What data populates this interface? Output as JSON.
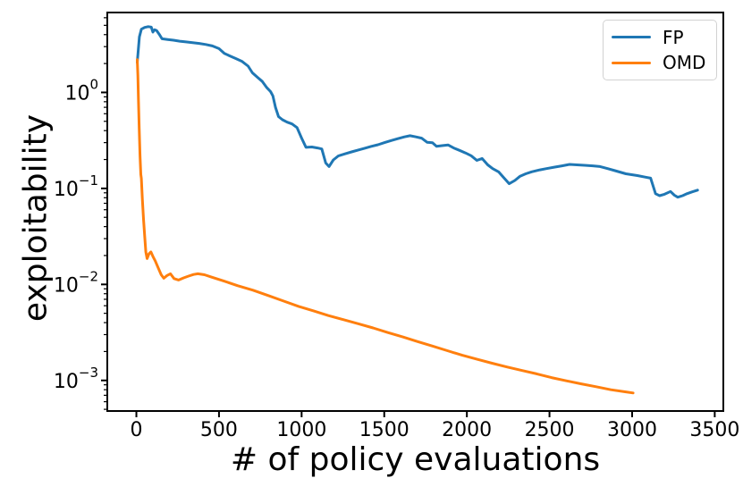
{
  "figure": {
    "background": "#ffffff",
    "spine_color": "#000000",
    "tick_color": "#000000",
    "text_color": "#000000"
  },
  "chart_data": {
    "type": "line",
    "title": "",
    "xlabel": "# of policy evaluations",
    "ylabel": "exploitability",
    "x_scale": "linear",
    "y_scale": "log",
    "xlim": [
      -176,
      3552
    ],
    "ylim": [
      0.00048,
      6.8
    ],
    "grid": false,
    "x_ticks": [
      {
        "value": 0,
        "label": "0"
      },
      {
        "value": 500,
        "label": "500"
      },
      {
        "value": 1000,
        "label": "1000"
      },
      {
        "value": 1500,
        "label": "1500"
      },
      {
        "value": 2000,
        "label": "2000"
      },
      {
        "value": 2500,
        "label": "2500"
      },
      {
        "value": 3000,
        "label": "3000"
      },
      {
        "value": 3500,
        "label": "3500"
      }
    ],
    "y_ticks": [
      {
        "value": 1,
        "base": "10",
        "exp": "0"
      },
      {
        "value": 0.1,
        "base": "10",
        "exp": "−1"
      },
      {
        "value": 0.01,
        "base": "10",
        "exp": "−2"
      },
      {
        "value": 0.001,
        "base": "10",
        "exp": "−3"
      }
    ],
    "legend": {
      "position": "upper-right",
      "entries": [
        {
          "label": "FP",
          "color": "#1f77b4"
        },
        {
          "label": "OMD",
          "color": "#ff7f0e"
        }
      ]
    },
    "series": [
      {
        "name": "FP",
        "color": "#1f77b4",
        "points": [
          [
            5,
            2.05
          ],
          [
            18,
            3.8
          ],
          [
            30,
            4.55
          ],
          [
            50,
            4.75
          ],
          [
            72,
            4.85
          ],
          [
            90,
            4.78
          ],
          [
            100,
            4.25
          ],
          [
            110,
            4.5
          ],
          [
            122,
            4.42
          ],
          [
            138,
            4.05
          ],
          [
            155,
            3.62
          ],
          [
            190,
            3.56
          ],
          [
            225,
            3.5
          ],
          [
            262,
            3.42
          ],
          [
            300,
            3.36
          ],
          [
            340,
            3.3
          ],
          [
            380,
            3.24
          ],
          [
            420,
            3.16
          ],
          [
            460,
            3.05
          ],
          [
            500,
            2.86
          ],
          [
            532,
            2.55
          ],
          [
            566,
            2.4
          ],
          [
            600,
            2.26
          ],
          [
            640,
            2.1
          ],
          [
            676,
            1.88
          ],
          [
            702,
            1.6
          ],
          [
            732,
            1.44
          ],
          [
            762,
            1.3
          ],
          [
            790,
            1.12
          ],
          [
            812,
            1.02
          ],
          [
            826,
            0.92
          ],
          [
            842,
            0.7
          ],
          [
            860,
            0.56
          ],
          [
            884,
            0.52
          ],
          [
            912,
            0.49
          ],
          [
            942,
            0.47
          ],
          [
            972,
            0.43
          ],
          [
            1000,
            0.335
          ],
          [
            1026,
            0.268
          ],
          [
            1062,
            0.27
          ],
          [
            1096,
            0.264
          ],
          [
            1122,
            0.258
          ],
          [
            1146,
            0.184
          ],
          [
            1166,
            0.169
          ],
          [
            1192,
            0.198
          ],
          [
            1222,
            0.218
          ],
          [
            1262,
            0.229
          ],
          [
            1302,
            0.24
          ],
          [
            1342,
            0.251
          ],
          [
            1382,
            0.262
          ],
          [
            1422,
            0.274
          ],
          [
            1462,
            0.285
          ],
          [
            1502,
            0.3
          ],
          [
            1542,
            0.315
          ],
          [
            1582,
            0.33
          ],
          [
            1622,
            0.344
          ],
          [
            1656,
            0.354
          ],
          [
            1692,
            0.344
          ],
          [
            1726,
            0.334
          ],
          [
            1760,
            0.302
          ],
          [
            1792,
            0.299
          ],
          [
            1816,
            0.275
          ],
          [
            1850,
            0.279
          ],
          [
            1886,
            0.284
          ],
          [
            1920,
            0.264
          ],
          [
            1956,
            0.249
          ],
          [
            1992,
            0.234
          ],
          [
            2026,
            0.219
          ],
          [
            2060,
            0.196
          ],
          [
            2092,
            0.205
          ],
          [
            2126,
            0.176
          ],
          [
            2156,
            0.161
          ],
          [
            2192,
            0.149
          ],
          [
            2226,
            0.128
          ],
          [
            2256,
            0.112
          ],
          [
            2290,
            0.121
          ],
          [
            2322,
            0.134
          ],
          [
            2356,
            0.142
          ],
          [
            2392,
            0.149
          ],
          [
            2442,
            0.156
          ],
          [
            2482,
            0.161
          ],
          [
            2532,
            0.167
          ],
          [
            2576,
            0.172
          ],
          [
            2622,
            0.178
          ],
          [
            2666,
            0.176
          ],
          [
            2712,
            0.174
          ],
          [
            2762,
            0.172
          ],
          [
            2806,
            0.169
          ],
          [
            2852,
            0.161
          ],
          [
            2896,
            0.153
          ],
          [
            2962,
            0.142
          ],
          [
            3032,
            0.136
          ],
          [
            3082,
            0.131
          ],
          [
            3112,
            0.128
          ],
          [
            3142,
            0.088
          ],
          [
            3166,
            0.084
          ],
          [
            3196,
            0.087
          ],
          [
            3232,
            0.093
          ],
          [
            3256,
            0.085
          ],
          [
            3276,
            0.081
          ],
          [
            3306,
            0.084
          ],
          [
            3332,
            0.088
          ],
          [
            3362,
            0.092
          ],
          [
            3396,
            0.096
          ]
        ]
      },
      {
        "name": "OMD",
        "color": "#ff7f0e",
        "points": [
          [
            5,
            2.2
          ],
          [
            9,
            1.5
          ],
          [
            13,
            0.8
          ],
          [
            17,
            0.42
          ],
          [
            22,
            0.22
          ],
          [
            27,
            0.14
          ],
          [
            30,
            0.127
          ],
          [
            36,
            0.078
          ],
          [
            43,
            0.048
          ],
          [
            50,
            0.032
          ],
          [
            57,
            0.0218
          ],
          [
            65,
            0.0186
          ],
          [
            76,
            0.0208
          ],
          [
            88,
            0.0218
          ],
          [
            100,
            0.0196
          ],
          [
            114,
            0.0176
          ],
          [
            132,
            0.0149
          ],
          [
            150,
            0.0126
          ],
          [
            166,
            0.0116
          ],
          [
            186,
            0.0124
          ],
          [
            206,
            0.0129
          ],
          [
            228,
            0.0115
          ],
          [
            256,
            0.0111
          ],
          [
            286,
            0.0117
          ],
          [
            316,
            0.0122
          ],
          [
            346,
            0.0127
          ],
          [
            372,
            0.0129
          ],
          [
            412,
            0.0126
          ],
          [
            456,
            0.0119
          ],
          [
            532,
            0.0108
          ],
          [
            612,
            0.0097
          ],
          [
            706,
            0.0087
          ],
          [
            802,
            0.0076
          ],
          [
            892,
            0.0067
          ],
          [
            982,
            0.0059
          ],
          [
            1072,
            0.0053
          ],
          [
            1162,
            0.00473
          ],
          [
            1252,
            0.0043
          ],
          [
            1342,
            0.0039
          ],
          [
            1432,
            0.00352
          ],
          [
            1522,
            0.00315
          ],
          [
            1612,
            0.00284
          ],
          [
            1702,
            0.00254
          ],
          [
            1792,
            0.00228
          ],
          [
            1882,
            0.00204
          ],
          [
            1972,
            0.00183
          ],
          [
            2062,
            0.00166
          ],
          [
            2152,
            0.00151
          ],
          [
            2242,
            0.00138
          ],
          [
            2332,
            0.00127
          ],
          [
            2422,
            0.00117
          ],
          [
            2512,
            0.00107
          ],
          [
            2602,
            0.00099
          ],
          [
            2692,
            0.00092
          ],
          [
            2782,
            0.00086
          ],
          [
            2872,
            0.0008
          ],
          [
            2962,
            0.00076
          ],
          [
            3006,
            0.00074
          ]
        ]
      }
    ]
  }
}
